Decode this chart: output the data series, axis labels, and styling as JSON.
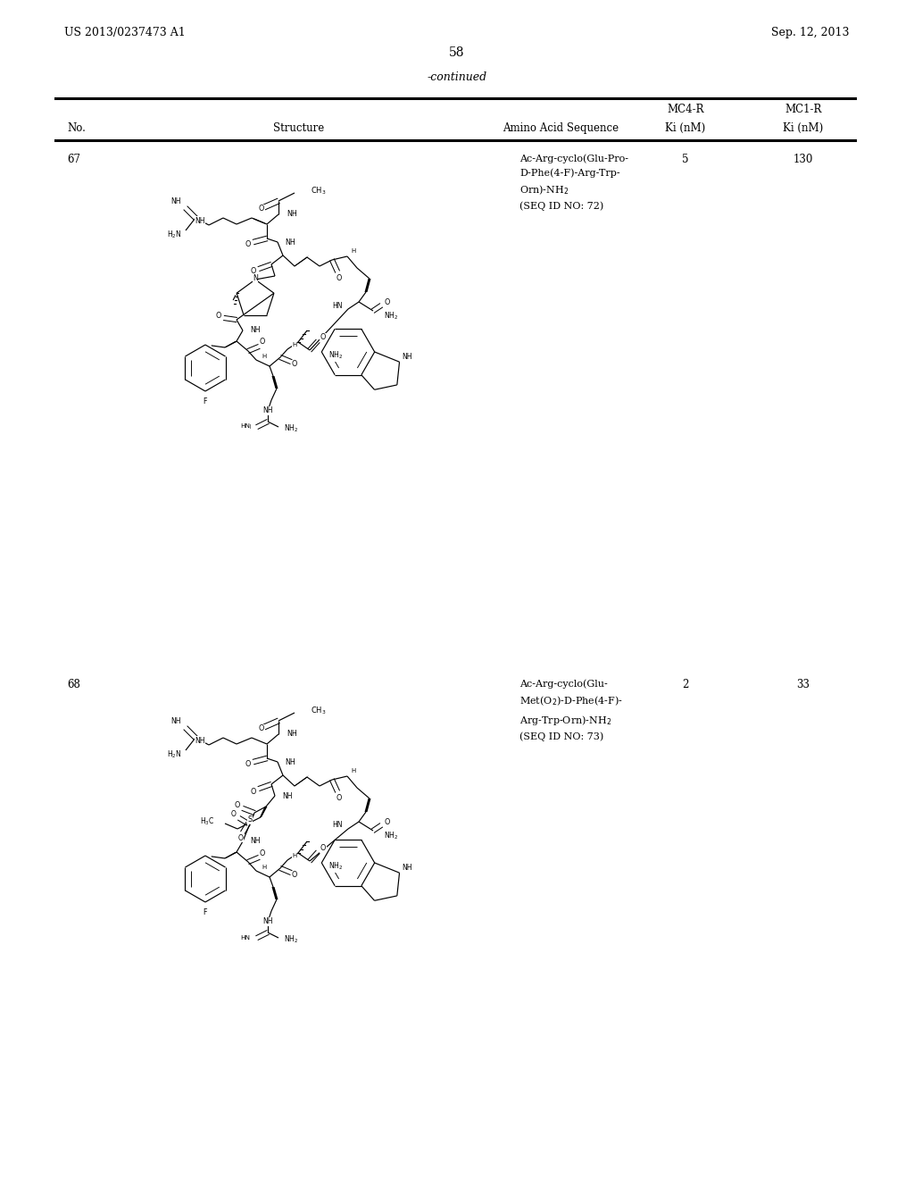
{
  "page_width": 10.24,
  "page_height": 13.2,
  "dpi": 100,
  "header_left": "US 2013/0237473 A1",
  "header_right": "Sep. 12, 2013",
  "page_number": "58",
  "continued": "-continued",
  "col_headers_row1": {
    "mc4r": "MC4-R",
    "mc1r": "MC1-R"
  },
  "col_headers_row2": {
    "no": "No.",
    "structure": "Structure",
    "aas": "Amino Acid Sequence",
    "ki1": "Ki (nM)",
    "ki2": "Ki (nM)"
  },
  "entry67": {
    "no": "67",
    "seq": "Ac-Arg-cyclo(Glu-Pro-\nD-Phe(4-F)-Arg-Trp-\nOrn)-NH$_2$\n(SEQ ID NO: 72)",
    "mc4r": "5",
    "mc1r": "130"
  },
  "entry68": {
    "no": "68",
    "seq": "Ac-Arg-cyclo(Glu-\nMet(O$_2$)-D-Phe(4-F)-\nArg-Trp-Orn)-NH$_2$\n(SEQ ID NO: 73)",
    "mc4r": "2",
    "mc1r": "33"
  },
  "bg_color": "#ffffff"
}
